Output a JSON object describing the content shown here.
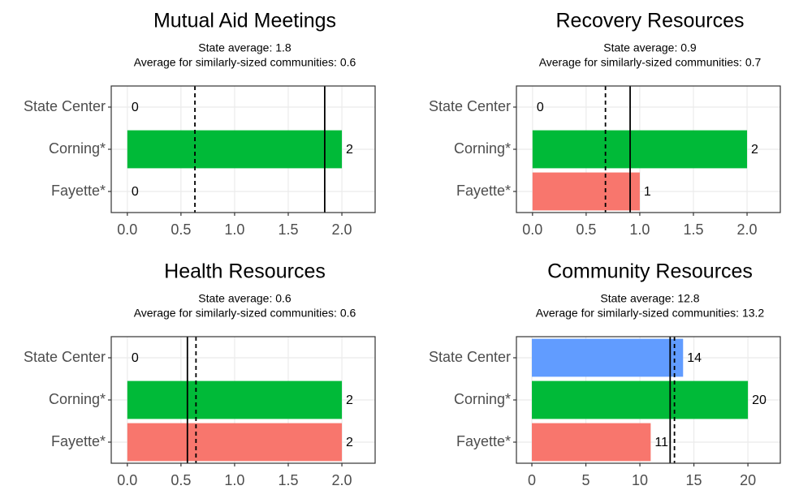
{
  "chart_data": [
    {
      "type": "barh",
      "title": "Mutual Aid Meetings",
      "subtitle": [
        "State average: 1.8",
        "Average for similarly-sized communities: 0.6"
      ],
      "categories": [
        "State Center",
        "Corning*",
        "Fayette*"
      ],
      "values": [
        0,
        2,
        0
      ],
      "colors": [
        "#619cff",
        "#00ba38",
        "#f8766d"
      ],
      "reference_lines": [
        {
          "value": 1.84,
          "style": "solid"
        },
        {
          "value": 0.63,
          "style": "dashed"
        }
      ],
      "xlim": [
        -0.15,
        2.31
      ],
      "xticks": [
        {
          "value": 0,
          "label": "0.0"
        },
        0.5,
        {
          "value": 1,
          "label": "1.0"
        },
        1.5,
        {
          "value": 2,
          "label": "2.0"
        }
      ],
      "grid": true
    },
    {
      "type": "barh",
      "title": "Recovery Resources",
      "subtitle": [
        "State average: 0.9",
        "Average for similarly-sized communities: 0.7"
      ],
      "categories": [
        "State Center",
        "Corning*",
        "Fayette*"
      ],
      "values": [
        0,
        2,
        1
      ],
      "colors": [
        "#619cff",
        "#00ba38",
        "#f8766d"
      ],
      "reference_lines": [
        {
          "value": 0.91,
          "style": "solid"
        },
        {
          "value": 0.68,
          "style": "dashed"
        }
      ],
      "xlim": [
        -0.15,
        2.31
      ],
      "xticks": [
        {
          "value": 0,
          "label": "0.0"
        },
        0.5,
        {
          "value": 1,
          "label": "1.0"
        },
        1.5,
        {
          "value": 2,
          "label": "2.0"
        }
      ],
      "grid": true
    },
    {
      "type": "barh",
      "title": "Health Resources",
      "subtitle": [
        "State average: 0.6",
        "Average for similarly-sized communities: 0.6"
      ],
      "categories": [
        "State Center",
        "Corning*",
        "Fayette*"
      ],
      "values": [
        0,
        2,
        2
      ],
      "colors": [
        "#619cff",
        "#00ba38",
        "#f8766d"
      ],
      "reference_lines": [
        {
          "value": 0.56,
          "style": "solid"
        },
        {
          "value": 0.64,
          "style": "dashed"
        }
      ],
      "xlim": [
        -0.15,
        2.31
      ],
      "xticks": [
        {
          "value": 0,
          "label": "0.0"
        },
        0.5,
        {
          "value": 1,
          "label": "1.0"
        },
        1.5,
        {
          "value": 2,
          "label": "2.0"
        }
      ],
      "grid": true
    },
    {
      "type": "barh",
      "title": "Community Resources",
      "subtitle": [
        "State average: 12.8",
        "Average for similarly-sized communities: 13.2"
      ],
      "categories": [
        "State Center",
        "Corning*",
        "Fayette*"
      ],
      "values": [
        14,
        20,
        11
      ],
      "colors": [
        "#619cff",
        "#00ba38",
        "#f8766d"
      ],
      "reference_lines": [
        {
          "value": 12.8,
          "style": "solid"
        },
        {
          "value": 13.2,
          "style": "dashed"
        }
      ],
      "xlim": [
        -1.43,
        23.0
      ],
      "xticks": [
        0,
        5,
        10,
        15,
        20
      ],
      "grid": true
    }
  ]
}
